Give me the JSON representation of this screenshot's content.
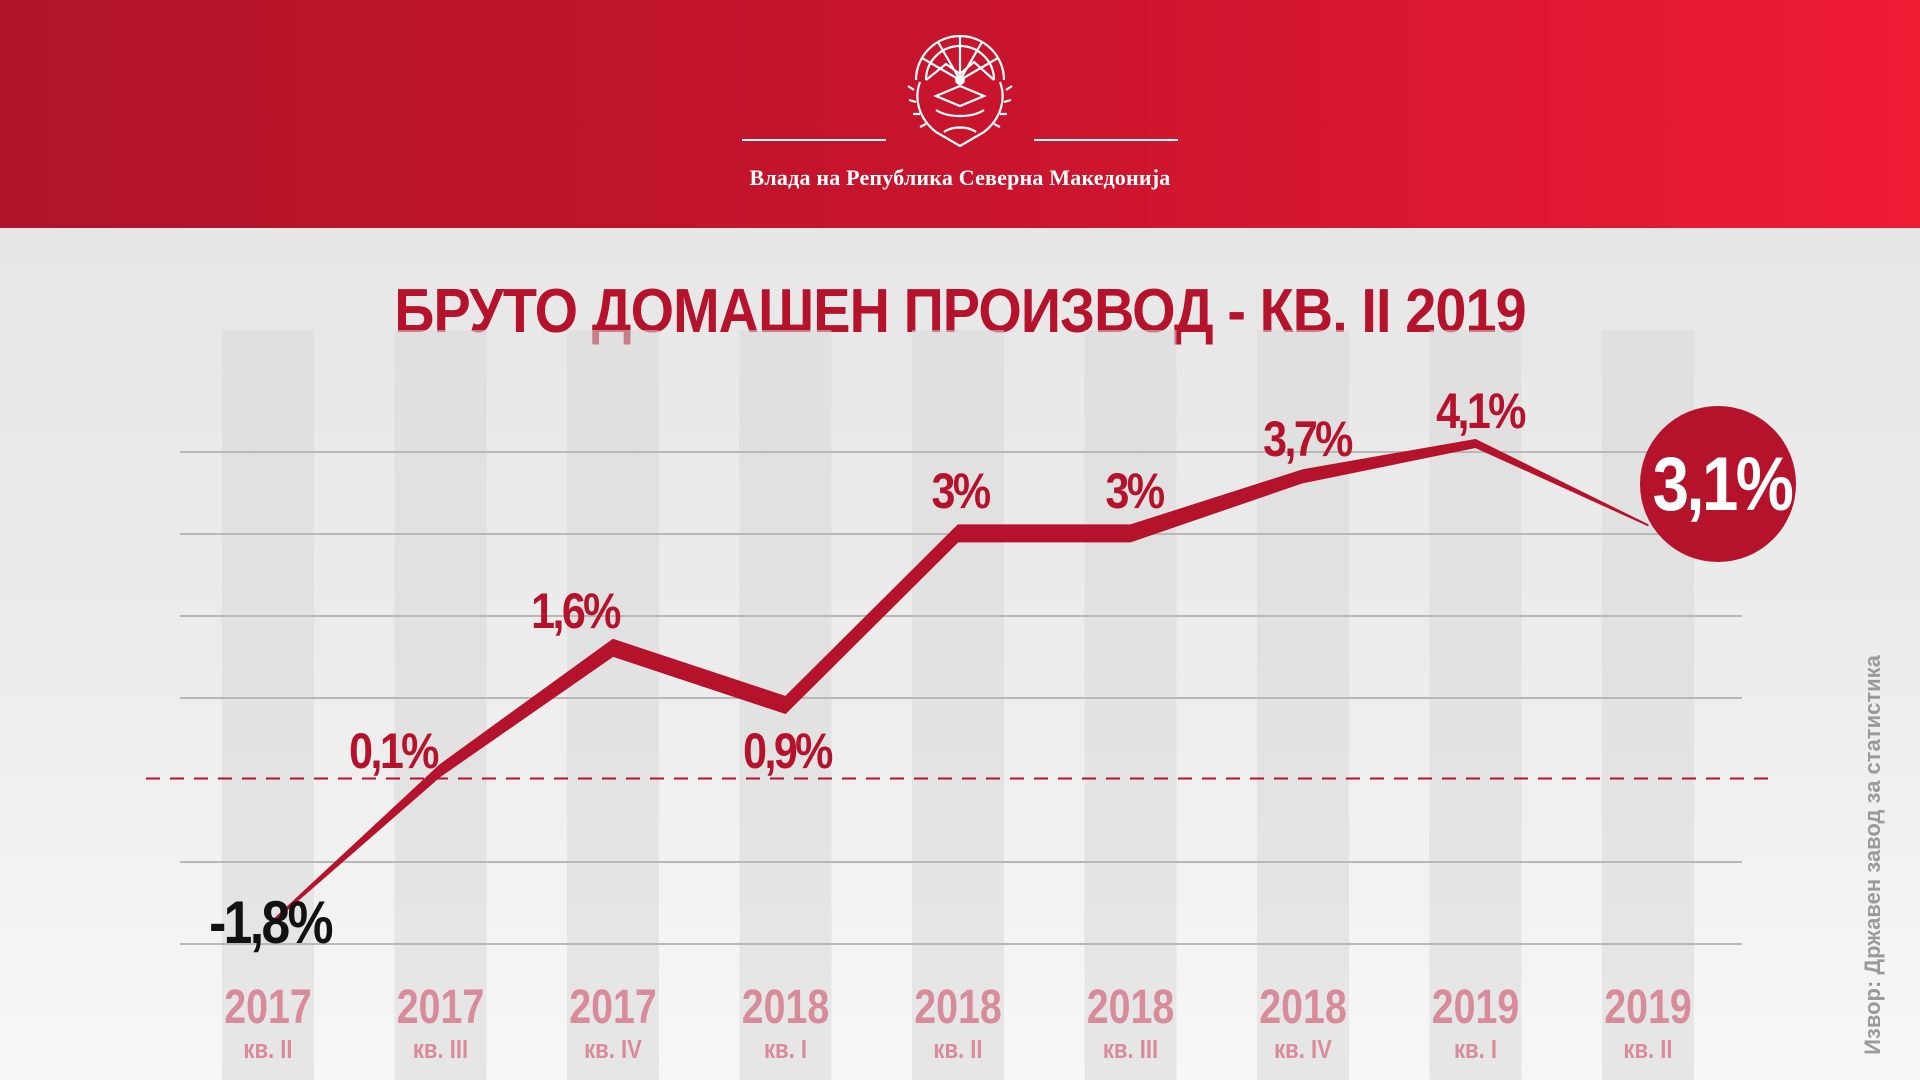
{
  "header": {
    "government_name": "Влада на Република Северна Македонија"
  },
  "colors": {
    "brand_red": "#b5122b",
    "header_red_light": "#ee1b33",
    "category_text": "#d88b98",
    "negative_label": "#111111",
    "grid": "#b8b8b8",
    "column_band": "#d8d8d8"
  },
  "chart_data": {
    "type": "line",
    "title": "БРУТО ДОМАШЕН ПРОИЗВОД - КВ. II 2019",
    "categories": [
      {
        "year": "2017",
        "quarter": "кв. II"
      },
      {
        "year": "2017",
        "quarter": "кв. III"
      },
      {
        "year": "2017",
        "quarter": "кв. IV"
      },
      {
        "year": "2018",
        "quarter": "кв. I"
      },
      {
        "year": "2018",
        "quarter": "кв. II"
      },
      {
        "year": "2018",
        "quarter": "кв. III"
      },
      {
        "year": "2018",
        "quarter": "кв. IV"
      },
      {
        "year": "2019",
        "quarter": "кв. I"
      },
      {
        "year": "2019",
        "quarter": "кв. II"
      }
    ],
    "values": [
      -1.8,
      0.1,
      1.6,
      0.9,
      3.0,
      3.0,
      3.7,
      4.1,
      3.1
    ],
    "data_labels": [
      "-1,8%",
      "0,1%",
      "1,6%",
      "0,9%",
      "3%",
      "3%",
      "3,7%",
      "4,1%",
      "3,1%"
    ],
    "highlighted_index": 8,
    "zero_line": "dashed",
    "grid": true,
    "legend": "none"
  },
  "source": "Извор: Државен завод за статистика"
}
